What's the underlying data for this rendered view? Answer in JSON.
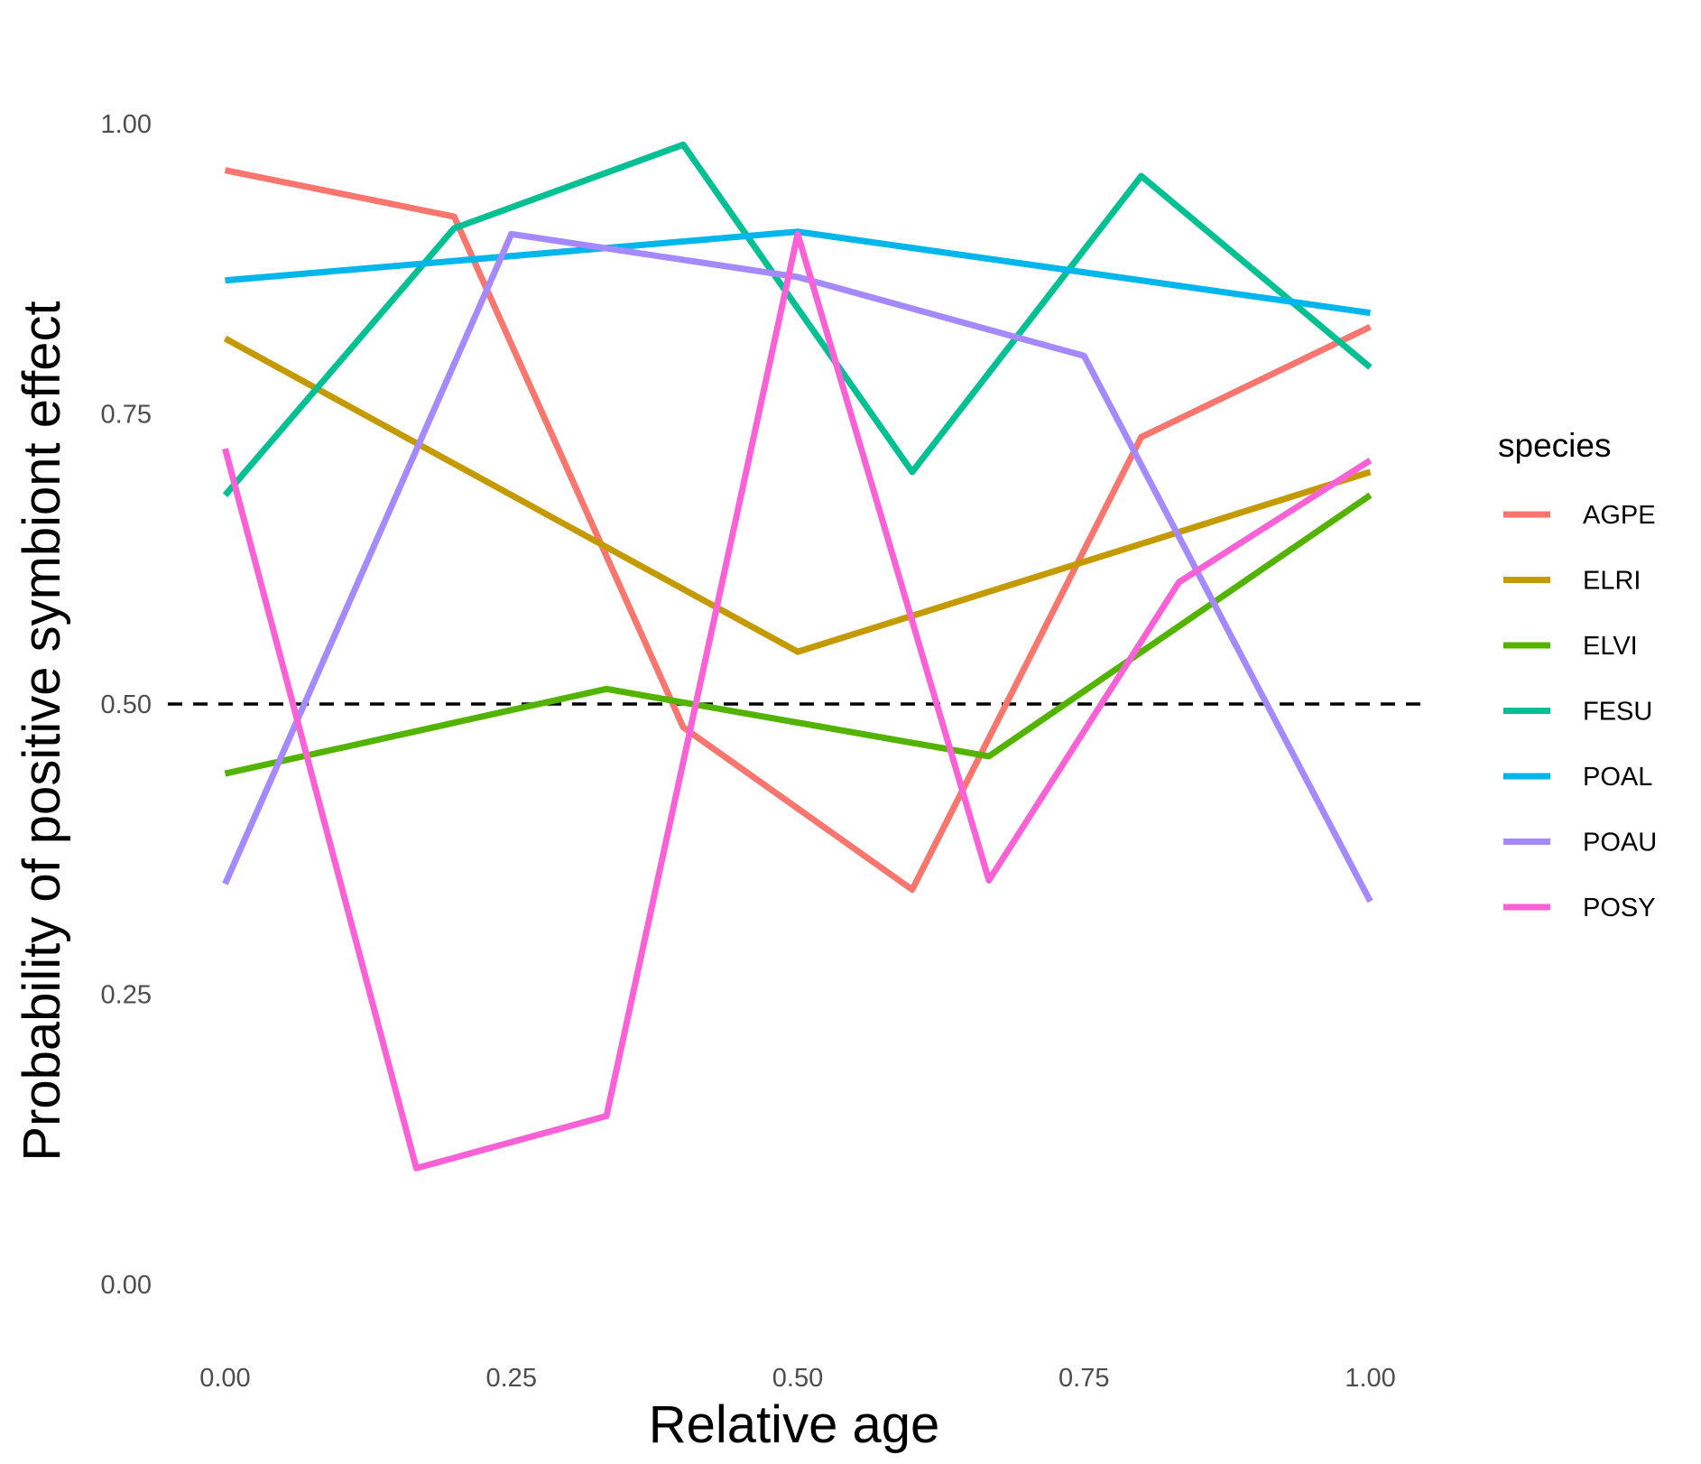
{
  "chart_data": {
    "type": "line",
    "xlabel": "Relative age",
    "ylabel": "Probability of positive symbiont effect",
    "xlim": [
      -0.05,
      1.05
    ],
    "ylim": [
      -0.06,
      1.06
    ],
    "x_ticks": [
      0,
      0.25,
      0.5,
      0.75,
      1
    ],
    "x_tick_labels": [
      "0.00",
      "0.25",
      "0.50",
      "0.75",
      "1.00"
    ],
    "y_ticks": [
      0,
      0.25,
      0.5,
      0.75,
      1
    ],
    "y_tick_labels": [
      "0.00",
      "0.25",
      "0.50",
      "0.75",
      "1.00"
    ],
    "grid": false,
    "reference_line": {
      "y": 0.5,
      "style": "dashed",
      "color": "#000000"
    },
    "legend": {
      "title": "species",
      "position": "right"
    },
    "series": [
      {
        "name": "AGPE",
        "color": "#F8766D",
        "x": [
          0,
          0.2,
          0.4,
          0.6,
          0.8,
          1.0
        ],
        "y": [
          0.96,
          0.92,
          0.48,
          0.34,
          0.73,
          0.825
        ]
      },
      {
        "name": "ELRI",
        "color": "#C49A00",
        "x": [
          0,
          0.5,
          1.0
        ],
        "y": [
          0.815,
          0.545,
          0.7
        ]
      },
      {
        "name": "ELVI",
        "color": "#53B400",
        "x": [
          0,
          0.333,
          0.667,
          1.0
        ],
        "y": [
          0.44,
          0.513,
          0.455,
          0.68
        ]
      },
      {
        "name": "FESU",
        "color": "#00C094",
        "x": [
          0,
          0.2,
          0.4,
          0.6,
          0.8,
          1.0
        ],
        "y": [
          0.68,
          0.91,
          0.982,
          0.7,
          0.955,
          0.79
        ]
      },
      {
        "name": "POAL",
        "color": "#00B6EB",
        "x": [
          0,
          0.5,
          1.0
        ],
        "y": [
          0.865,
          0.907,
          0.837
        ]
      },
      {
        "name": "POAU",
        "color": "#A58AFF",
        "x": [
          0,
          0.25,
          0.5,
          0.75,
          1.0
        ],
        "y": [
          0.345,
          0.905,
          0.868,
          0.8,
          0.33
        ]
      },
      {
        "name": "POSY",
        "color": "#FB61D7",
        "x": [
          0,
          0.167,
          0.333,
          0.5,
          0.667,
          0.833,
          1.0
        ],
        "y": [
          0.72,
          0.1,
          0.145,
          0.905,
          0.348,
          0.605,
          0.71
        ]
      }
    ]
  }
}
